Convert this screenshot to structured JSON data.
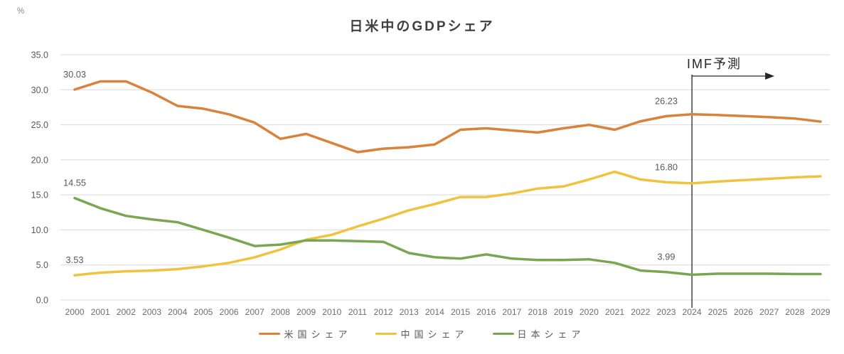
{
  "chart_data": {
    "type": "line",
    "title": "日米中のGDPシェア",
    "unit_label": "%",
    "grid": "horizontal-only",
    "legend_position": "bottom",
    "ylim": [
      0,
      35
    ],
    "x": [
      2000,
      2001,
      2002,
      2003,
      2004,
      2005,
      2006,
      2007,
      2008,
      2009,
      2010,
      2011,
      2012,
      2013,
      2014,
      2015,
      2016,
      2017,
      2018,
      2019,
      2020,
      2021,
      2022,
      2023,
      2024,
      2025,
      2026,
      2027,
      2028,
      2029
    ],
    "x_tick_labels": [
      "2000",
      "2001",
      "2002",
      "2003",
      "2004",
      "2005",
      "2006",
      "2007",
      "2008",
      "2009",
      "2010",
      "2011",
      "2012",
      "2013",
      "2014",
      "2015",
      "2016",
      "2017",
      "2018",
      "2019",
      "2020",
      "2021",
      "2022",
      "2023",
      "2024",
      "2025",
      "2026",
      "2027",
      "2028",
      "2029"
    ],
    "y_ticks": [
      {
        "value": 35,
        "label": "35.0"
      },
      {
        "value": 30,
        "label": "30.0"
      },
      {
        "value": 25,
        "label": "25.0"
      },
      {
        "value": 20,
        "label": "20.0"
      },
      {
        "value": 15,
        "label": "15.0"
      },
      {
        "value": 10,
        "label": "10.0"
      },
      {
        "value": 5,
        "label": "5.0"
      },
      {
        "value": 0,
        "label": "0.0"
      }
    ],
    "series": [
      {
        "id": "us",
        "name": "米国シェア",
        "color": "#D9823C",
        "values": [
          30.03,
          31.2,
          31.2,
          29.6,
          27.7,
          27.3,
          26.5,
          25.3,
          23.0,
          23.7,
          22.4,
          21.1,
          21.6,
          21.8,
          22.2,
          24.3,
          24.5,
          24.2,
          23.9,
          24.5,
          25.0,
          24.3,
          25.5,
          26.23,
          26.5,
          26.4,
          26.25,
          26.1,
          25.9,
          25.45
        ]
      },
      {
        "id": "china",
        "name": "中国シェア",
        "color": "#F0C33E",
        "values": [
          3.53,
          3.9,
          4.1,
          4.2,
          4.4,
          4.8,
          5.3,
          6.1,
          7.2,
          8.6,
          9.3,
          10.5,
          11.6,
          12.8,
          13.7,
          14.7,
          14.7,
          15.2,
          15.9,
          16.2,
          17.2,
          18.3,
          17.2,
          16.8,
          16.65,
          16.9,
          17.1,
          17.3,
          17.5,
          17.65
        ]
      },
      {
        "id": "japan",
        "name": "日本シェア",
        "color": "#7AA652",
        "values": [
          14.55,
          13.1,
          12.0,
          11.5,
          11.1,
          10.0,
          8.9,
          7.7,
          7.9,
          8.5,
          8.5,
          8.4,
          8.3,
          6.7,
          6.1,
          5.9,
          6.5,
          5.9,
          5.7,
          5.7,
          5.8,
          5.3,
          4.2,
          3.99,
          3.6,
          3.75,
          3.75,
          3.75,
          3.7,
          3.7
        ]
      }
    ],
    "annotations": [
      {
        "series": "us",
        "year": 2000,
        "label": "30.03"
      },
      {
        "series": "japan",
        "year": 2000,
        "label": "14.55"
      },
      {
        "series": "china",
        "year": 2000,
        "label": "3.53"
      },
      {
        "series": "us",
        "year": 2023,
        "label": "26.23"
      },
      {
        "series": "china",
        "year": 2023,
        "label": "16.80"
      },
      {
        "series": "japan",
        "year": 2023,
        "label": "3.99"
      }
    ],
    "forecast": {
      "label": "IMF予測",
      "start_year": 2024
    }
  },
  "colors": {
    "grid": "#D9D9D9",
    "y_tick_text": "#595959",
    "x_tick_text": "#6E6E6E",
    "title_text": "#3F3F3F",
    "annotation_text": "#595959",
    "forecast_line": "#262626",
    "background": "#FFFFFF"
  }
}
